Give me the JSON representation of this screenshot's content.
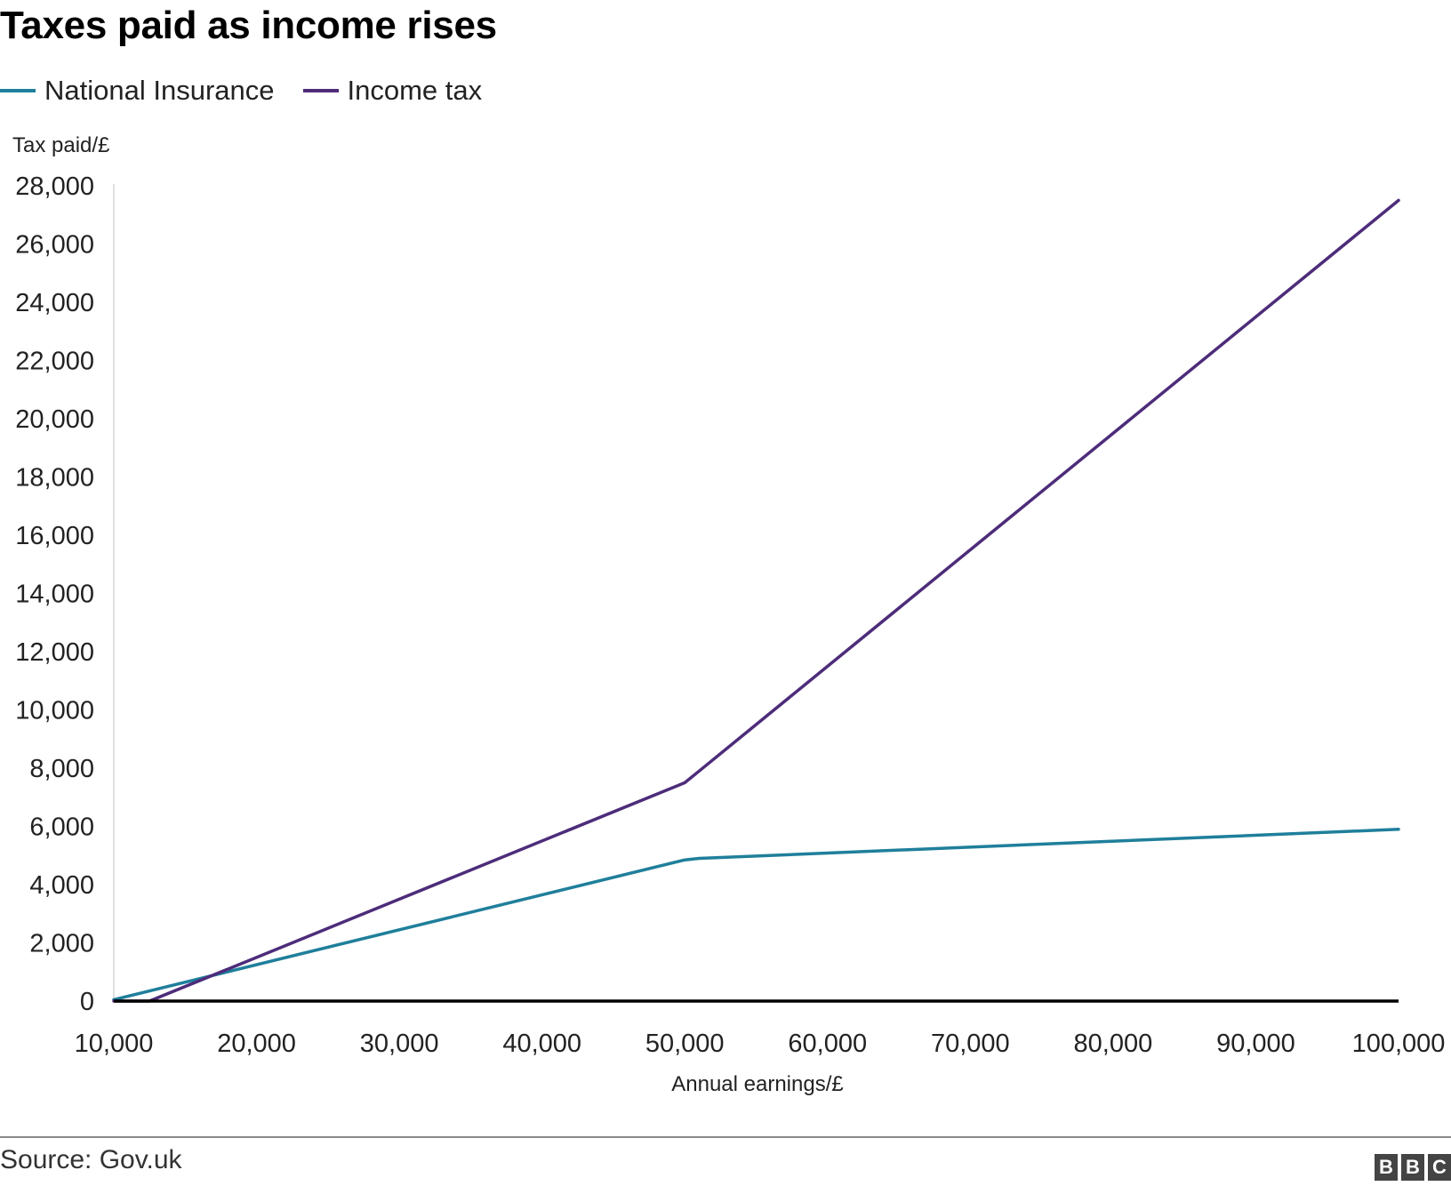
{
  "chart_data": {
    "type": "line",
    "title": "Taxes paid as income rises",
    "xlabel": "Annual earnings/£",
    "ylabel": "Tax paid/£",
    "xlim": [
      10000,
      100000
    ],
    "ylim": [
      0,
      28000
    ],
    "x_ticks": [
      "10,000",
      "20,000",
      "30,000",
      "40,000",
      "50,000",
      "60,000",
      "70,000",
      "80,000",
      "90,000",
      "100,000"
    ],
    "x_tick_values": [
      10000,
      20000,
      30000,
      40000,
      50000,
      60000,
      70000,
      80000,
      90000,
      100000
    ],
    "y_ticks": [
      "0",
      "2,000",
      "4,000",
      "6,000",
      "8,000",
      "10,000",
      "12,000",
      "14,000",
      "16,000",
      "18,000",
      "20,000",
      "22,000",
      "24,000",
      "26,000",
      "28,000"
    ],
    "y_tick_values": [
      0,
      2000,
      4000,
      6000,
      8000,
      10000,
      12000,
      14000,
      16000,
      18000,
      20000,
      22000,
      24000,
      26000,
      28000
    ],
    "grid": false,
    "legend_position": "top-left",
    "series": [
      {
        "name": "National Insurance",
        "color": "#1f7f9b",
        "points": [
          [
            10000,
            50
          ],
          [
            50000,
            4850
          ],
          [
            51000,
            4900
          ],
          [
            100000,
            5900
          ]
        ]
      },
      {
        "name": "Income tax",
        "color": "#4d2c7a",
        "points": [
          [
            10000,
            0
          ],
          [
            12500,
            0
          ],
          [
            50000,
            7500
          ],
          [
            51000,
            7900
          ],
          [
            100000,
            27500
          ]
        ]
      }
    ]
  },
  "source": "Source: Gov.uk",
  "logo": [
    "B",
    "B",
    "C"
  ]
}
